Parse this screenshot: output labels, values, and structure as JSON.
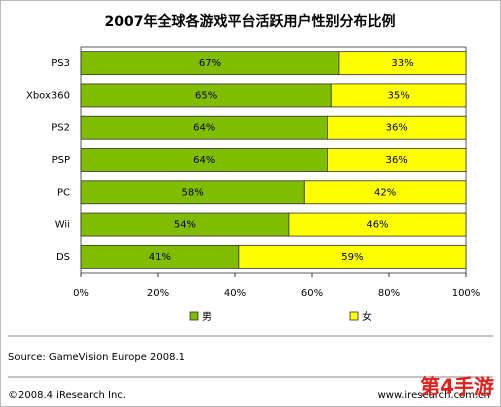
{
  "chart_data": {
    "type": "bar",
    "orientation": "horizontal",
    "stacked": true,
    "title": "2007年全球各游戏平台活跃用户性别分布比例",
    "categories": [
      "PS3",
      "Xbox360",
      "PS2",
      "PSP",
      "PC",
      "Wii",
      "DS"
    ],
    "series": [
      {
        "name": "男",
        "color": "#80bc00",
        "values": [
          67,
          65,
          64,
          64,
          58,
          54,
          41
        ],
        "value_labels": [
          "67%",
          "65%",
          "64%",
          "64%",
          "58%",
          "54%",
          "41%"
        ]
      },
      {
        "name": "女",
        "color": "#ffff00",
        "values": [
          33,
          35,
          36,
          36,
          42,
          46,
          59
        ],
        "value_labels": [
          "33%",
          "35%",
          "36%",
          "36%",
          "42%",
          "46%",
          "59%"
        ]
      }
    ],
    "xlim": [
      0,
      100
    ],
    "xticks": [
      {
        "value": 0,
        "label": "0%"
      },
      {
        "value": 20,
        "label": "20%"
      },
      {
        "value": 40,
        "label": "40%"
      },
      {
        "value": 60,
        "label": "60%"
      },
      {
        "value": 80,
        "label": "80%"
      },
      {
        "value": 100,
        "label": "100%"
      }
    ],
    "source": "Source: GameVision Europe 2008.1"
  },
  "footer": {
    "copyright": "©2008.4 iResearch Inc.",
    "website": "www.iresearch.com.cn",
    "watermark": "第4手游"
  }
}
